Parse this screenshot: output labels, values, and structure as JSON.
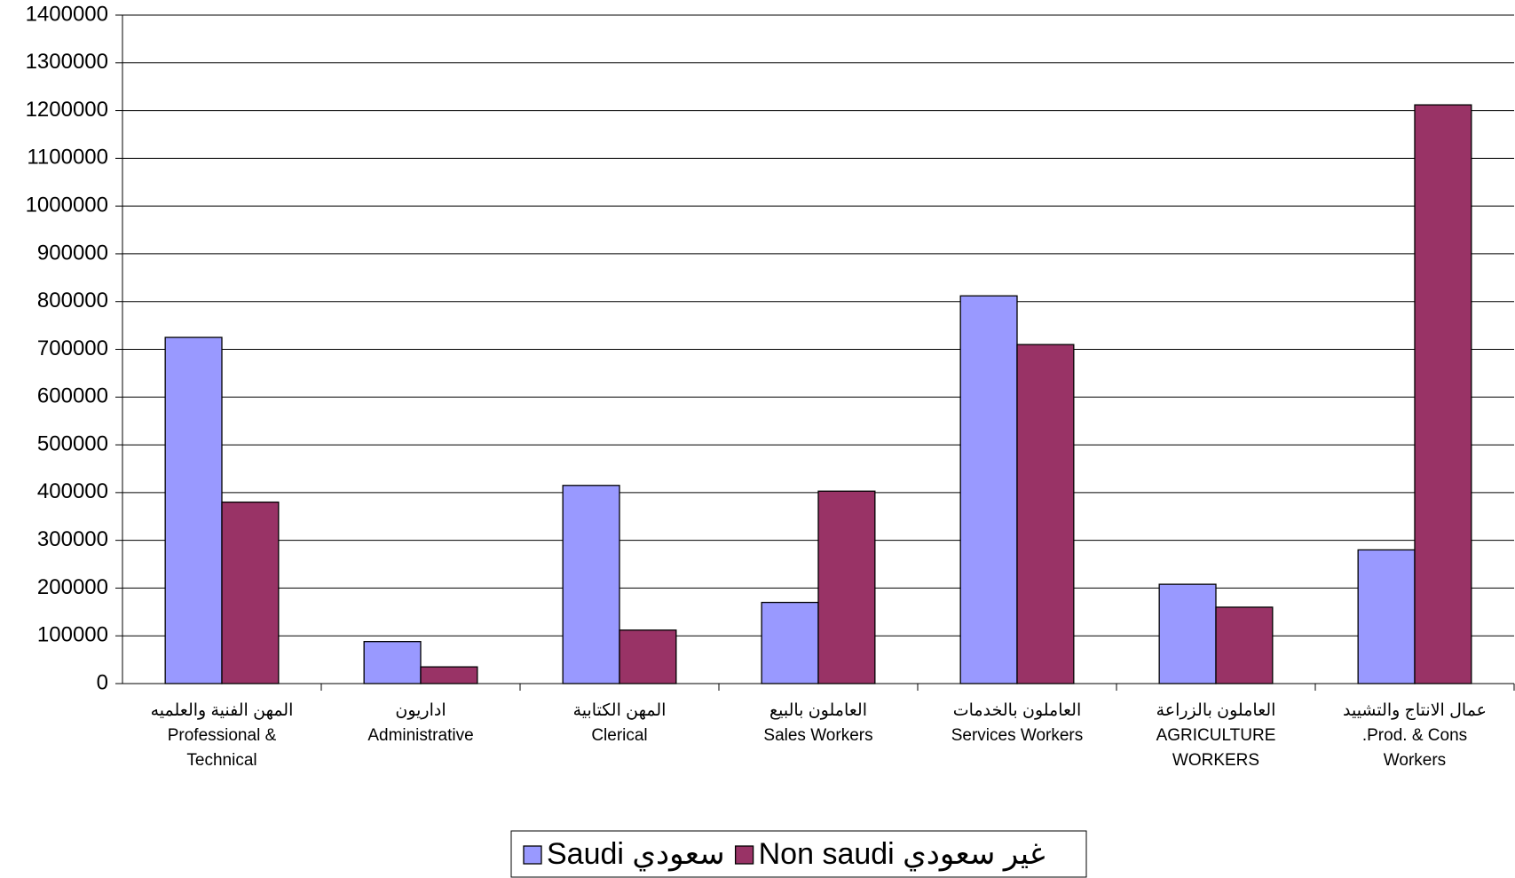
{
  "chart_data": {
    "type": "bar",
    "categories": [
      [
        "المهن الفنية والعلميه",
        "Professional &",
        "Technical"
      ],
      [
        "اداريون",
        "Administrative"
      ],
      [
        "المهن الكتابية",
        "Clerical"
      ],
      [
        "العاملون بالبيع",
        "Sales  Workers"
      ],
      [
        "العاملون بالخدمات",
        "Services  Workers"
      ],
      [
        "العاملون بالزراعة",
        "AGRICULTURE",
        "WORKERS"
      ],
      [
        "عمال الانتاج والتشييد",
        ".Prod. & Cons",
        "Workers"
      ]
    ],
    "series": [
      {
        "name": "Saudi سعودي",
        "color": "#9999ff",
        "values": [
          725000,
          88000,
          415000,
          170000,
          812000,
          208000,
          280000
        ]
      },
      {
        "name": "Non saudi غير سعودي",
        "color": "#993366",
        "values": [
          380000,
          35000,
          112000,
          403000,
          710000,
          160000,
          1212000
        ]
      }
    ],
    "ylim": [
      0,
      1400000
    ],
    "yticks": [
      0,
      100000,
      200000,
      300000,
      400000,
      500000,
      600000,
      700000,
      800000,
      900000,
      1000000,
      1100000,
      1200000,
      1300000,
      1400000
    ],
    "grid": true,
    "legend": "bottom"
  }
}
